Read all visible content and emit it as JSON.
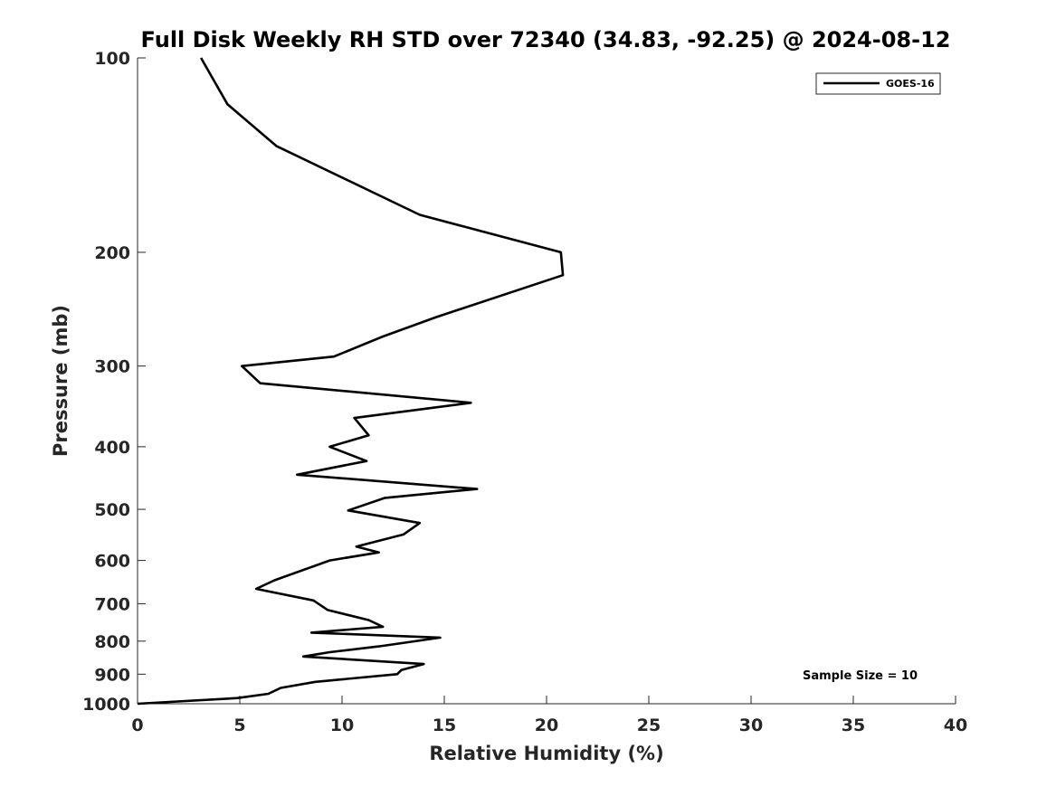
{
  "chart_data": {
    "type": "line",
    "title": "Full Disk Weekly RH STD over 72340 (34.83, -92.25) @ 2024-08-12",
    "xlabel": "Relative Humidity (%)",
    "ylabel": "Pressure (mb)",
    "xlim": [
      0,
      40
    ],
    "ylim": [
      100,
      1000
    ],
    "y_scale": "log",
    "y_reversed": true,
    "x_ticks": [
      0,
      5,
      10,
      15,
      20,
      25,
      30,
      35,
      40
    ],
    "y_ticks": [
      100,
      200,
      300,
      400,
      500,
      600,
      700,
      800,
      900,
      1000
    ],
    "grid": false,
    "legend_position": "top-right",
    "annotation": "Sample Size = 10",
    "series": [
      {
        "name": "GOES-16",
        "color": "#000000",
        "x": [
          3.1,
          4.4,
          6.8,
          13.8,
          20.7,
          20.8,
          14.6,
          12.0,
          9.6,
          5.1,
          6.0,
          16.3,
          10.6,
          11.3,
          9.4,
          11.2,
          7.8,
          16.6,
          12.1,
          10.3,
          13.8,
          13.0,
          10.7,
          11.8,
          9.4,
          6.7,
          5.8,
          8.6,
          9.3,
          11.3,
          12.0,
          8.5,
          14.8,
          11.8,
          9.4,
          8.1,
          14.0,
          12.9,
          12.7,
          8.7,
          7.0,
          6.4,
          4.9,
          0.0
        ],
        "y": [
          100,
          118,
          137,
          175,
          200,
          217,
          252,
          270,
          290,
          300,
          319,
          342,
          361,
          384,
          400,
          421,
          442,
          465,
          480,
          502,
          525,
          547,
          571,
          583,
          600,
          644,
          664,
          692,
          716,
          742,
          760,
          776,
          790,
          815,
          832,
          845,
          868,
          887,
          900,
          925,
          945,
          965,
          980,
          1000
        ]
      }
    ]
  }
}
